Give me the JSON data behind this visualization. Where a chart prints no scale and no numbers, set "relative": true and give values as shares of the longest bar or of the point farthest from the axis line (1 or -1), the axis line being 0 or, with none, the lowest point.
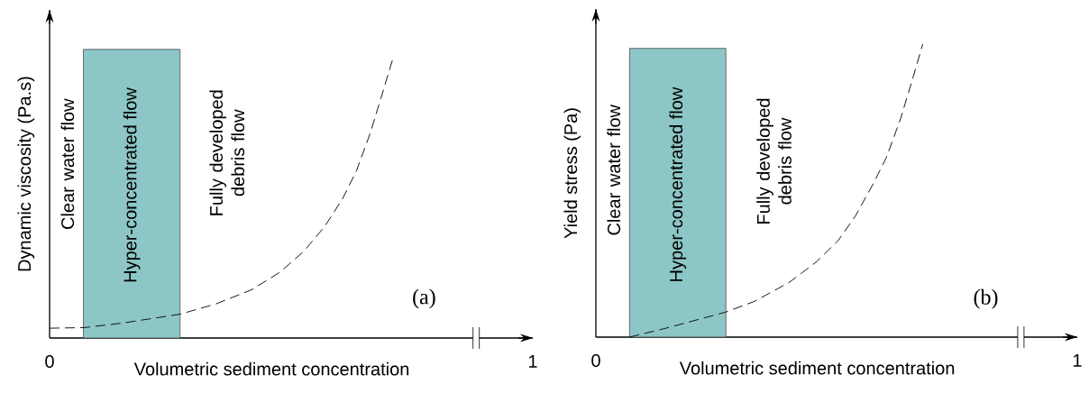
{
  "chart_data": [
    {
      "type": "line",
      "relative": true,
      "ylabel": "Dynamic viscosity (Pa.s)",
      "xlabel": "Volumetric sediment concentration",
      "xlim": [
        0,
        1
      ],
      "xticks": [
        0,
        1
      ],
      "marker": "none",
      "line_style": "dashed",
      "series": [
        {
          "color": "#000000",
          "x": [
            0,
            0.071,
            0.15,
            0.27,
            0.345,
            0.418,
            0.476,
            0.526,
            0.569,
            0.606,
            0.635,
            0.664,
            0.686,
            0.711
          ],
          "values": [
            0.035,
            0.037,
            0.053,
            0.085,
            0.122,
            0.172,
            0.234,
            0.309,
            0.397,
            0.496,
            0.596,
            0.733,
            0.857,
            1.0
          ]
        }
      ],
      "bands": [
        {
          "axis": "x",
          "from": 0.07,
          "to": 0.27,
          "label": "Hyper-concentrated flow",
          "color": "#8dc6c6"
        }
      ],
      "annotations": [
        "Clear water flow",
        "Fully developed debris flow",
        "(a)"
      ]
    },
    {
      "type": "line",
      "relative": true,
      "ylabel": "Yield stress (Pa)",
      "xlabel": "Volumetric sediment concentration",
      "xlim": [
        0,
        1
      ],
      "xticks": [
        0,
        1
      ],
      "marker": "none",
      "line_style": "dashed",
      "series": [
        {
          "color": "#000000",
          "x": [
            0.07,
            0.147,
            0.269,
            0.328,
            0.401,
            0.459,
            0.503,
            0.539,
            0.575,
            0.604,
            0.633,
            0.655,
            0.679
          ],
          "values": [
            0,
            0.031,
            0.085,
            0.121,
            0.186,
            0.258,
            0.329,
            0.413,
            0.52,
            0.615,
            0.746,
            0.865,
            1.0
          ]
        }
      ],
      "bands": [
        {
          "axis": "x",
          "from": 0.07,
          "to": 0.27,
          "label": "Hyper-concentrated flow",
          "color": "#8dc6c6"
        }
      ],
      "annotations": [
        "Clear water flow",
        "Fully developed debris flow",
        "(b)"
      ]
    }
  ]
}
